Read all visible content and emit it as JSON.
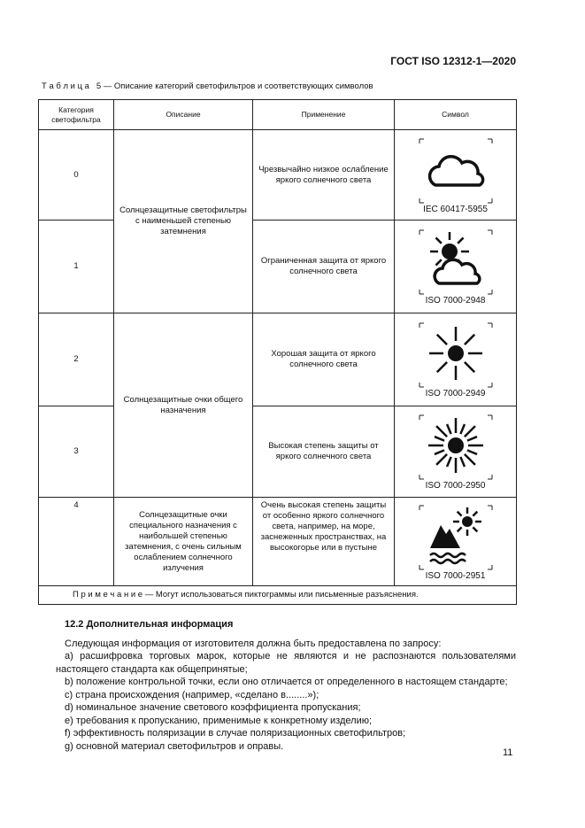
{
  "header": {
    "title": "ГОСТ ISO 12312-1—2020"
  },
  "table": {
    "caption": "Т а б л и ц а   5 — Описание категорий светофильтров и соответствующих символов",
    "headers": [
      "Категория светофильтра",
      "Описание",
      "Применение",
      "Символ"
    ],
    "descriptions": [
      "Солнцезащитные светофильтры с наименьшей степенью затемнения",
      "Солнцезащитные очки общего назначения",
      "Солнцезащитные очки специального назначения с наибольшей степенью затемнения, с очень сильным ослаблением солнечного излучения"
    ],
    "rows": [
      {
        "category": "0",
        "application": "Чрезвычайно низкое ослабление яркого солнечного света",
        "symbol": "IEC 60417-5955"
      },
      {
        "category": "1",
        "application": "Ограниченная защита от яркого солнечного света",
        "symbol": "ISO 7000-2948"
      },
      {
        "category": "2",
        "application": "Хорошая защита от яркого солнечного света",
        "symbol": "ISO 7000-2949"
      },
      {
        "category": "3",
        "application": "Высокая степень защиты от яркого солнечного света",
        "symbol": "ISO 7000-2950"
      },
      {
        "category": "4",
        "application": "Очень высокая степень защиты от особенно яркого солнечного света, например, на море, заснеженных пространствах, на высокогорье или в пустыне",
        "symbol": "ISO 7000-2951"
      }
    ],
    "note": "П р и м е ч а н и е — Могут использоваться пиктограммы или письменные разъяснения."
  },
  "section": {
    "heading": "12.2 Дополнительная информация",
    "intro": "Следующая информация от изготовителя должна быть предоставлена по запросу:",
    "items": [
      "a) расшифровка торговых марок, которые не являются и не распознаются пользователями настоящего стандарта как общепринятые;",
      "b) положение контрольной точки, если оно отличается от определенного в настоящем стандарте;",
      "c) страна происхождения (например, «сделано в........»);",
      "d) номинальное значение светового коэффициента пропускания;",
      "e) требования к пропусканию, применимые к конкретному изделию;",
      "f) эффективность поляризации в случае поляризационных светофильтров;",
      "g) основной материал светофильтров и оправы."
    ]
  },
  "page_number": "11"
}
